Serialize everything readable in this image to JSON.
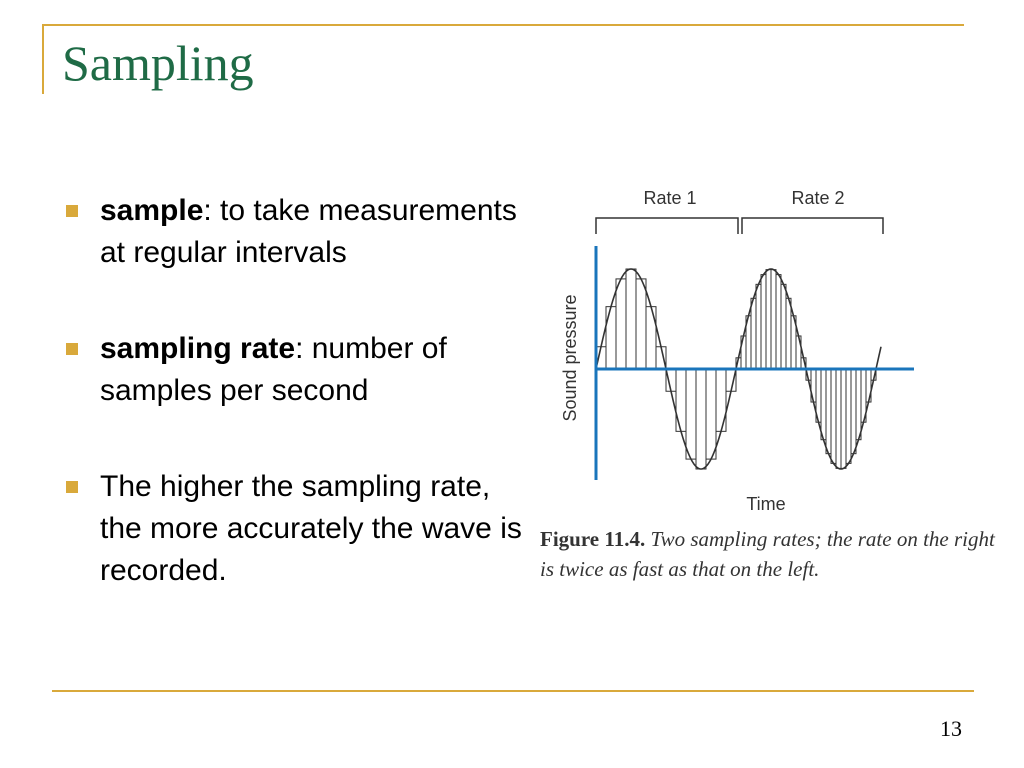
{
  "slide": {
    "title": "Sampling",
    "page_number": "13"
  },
  "bullets": [
    {
      "term": "sample",
      "text": ": to take measurements at regular intervals"
    },
    {
      "term": "sampling rate",
      "text": ": number of samples per second"
    },
    {
      "term": "",
      "text": "The higher the sampling rate, the more accurately the wave is recorded."
    }
  ],
  "figure": {
    "rate1_label": "Rate 1",
    "rate2_label": "Rate 2",
    "y_label": "Sound pressure",
    "x_label": "Time",
    "caption_label": "Figure 11.4.",
    "caption_text": " Two sampling rates; the rate on the right is twice as fast as that on the left."
  },
  "colors": {
    "accent": "#d9a93b",
    "title": "#1f6b46",
    "axis": "#1a75bb"
  }
}
